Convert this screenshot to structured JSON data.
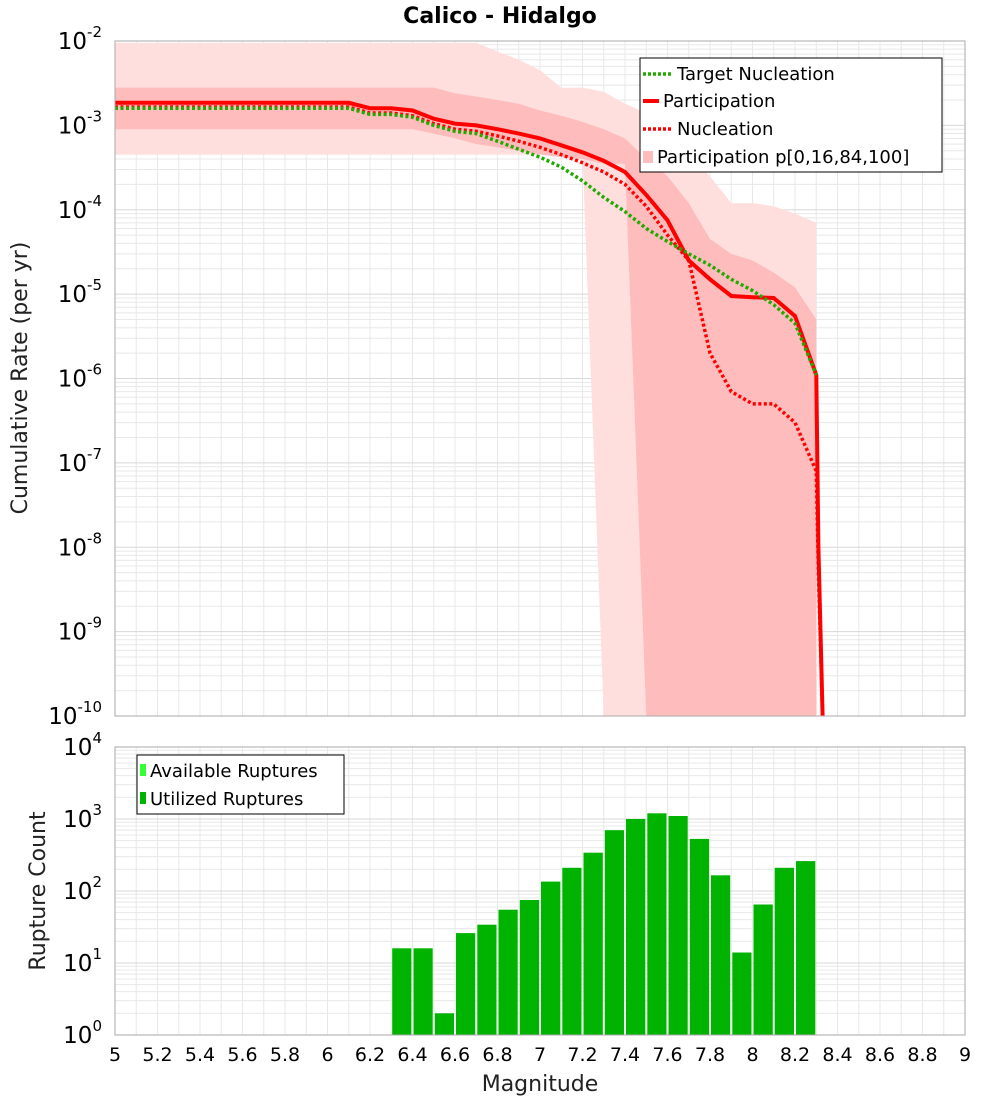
{
  "title": "Calico - Hidalgo",
  "colors": {
    "target": "#22aa00",
    "participation": "#ff0000",
    "nucleation": "#ff0000",
    "band_outer": "#ffdede",
    "band_inner": "#ffbcbc",
    "bars": "#00b300",
    "available": "#33ff33",
    "grid": "#e8e8e8"
  },
  "chart_data": [
    {
      "type": "line",
      "title": "Calico - Hidalgo",
      "xlabel": "",
      "ylabel": "Cumulative Rate (per yr)",
      "xlim": [
        5,
        9
      ],
      "ylim": [
        1e-10,
        0.01
      ],
      "yscale": "log",
      "grid": true,
      "legend": "top-right",
      "ytick_exponents": [
        "-10",
        "-9",
        "-8",
        "-7",
        "-6",
        "-5",
        "-4",
        "-3",
        "-2"
      ],
      "series": [
        {
          "name": "Target Nucleation",
          "style": "dotted",
          "x": [
            5.0,
            5.5,
            6.0,
            6.1,
            6.2,
            6.3,
            6.4,
            6.5,
            6.6,
            6.7,
            6.8,
            6.9,
            7.0,
            7.1,
            7.2,
            7.3,
            7.4,
            7.5,
            7.6,
            7.7,
            7.8,
            7.9,
            8.0,
            8.1,
            8.2,
            8.3
          ],
          "y": [
            0.0016,
            0.0016,
            0.0016,
            0.0016,
            0.00135,
            0.00135,
            0.00125,
            0.001,
            0.00085,
            0.0008,
            0.00065,
            0.00052,
            0.00042,
            0.00032,
            0.00022,
            0.00014,
            9.5e-05,
            6e-05,
            4.2e-05,
            3e-05,
            2.2e-05,
            1.5e-05,
            1.1e-05,
            7.5e-06,
            4.5e-06,
            1.1e-06
          ]
        },
        {
          "name": "Participation",
          "style": "solid",
          "x": [
            5.0,
            5.5,
            6.0,
            6.1,
            6.2,
            6.3,
            6.4,
            6.5,
            6.6,
            6.7,
            6.8,
            6.9,
            7.0,
            7.1,
            7.2,
            7.3,
            7.4,
            7.5,
            7.6,
            7.7,
            7.8,
            7.9,
            8.0,
            8.1,
            8.2,
            8.3,
            8.31,
            8.33
          ],
          "y": [
            0.00185,
            0.00185,
            0.00185,
            0.00185,
            0.0016,
            0.0016,
            0.0015,
            0.0012,
            0.00105,
            0.001,
            0.0009,
            0.0008,
            0.0007,
            0.00058,
            0.00048,
            0.00038,
            0.00028,
            0.00015,
            7.5e-05,
            2.5e-05,
            1.5e-05,
            9.5e-06,
            9.2e-06,
            9e-06,
            5.5e-06,
            1.1e-06,
            1e-08,
            1e-10
          ]
        },
        {
          "name": "Nucleation",
          "style": "dotted",
          "x": [
            5.0,
            5.5,
            6.0,
            6.1,
            6.2,
            6.3,
            6.4,
            6.5,
            6.6,
            6.7,
            6.8,
            6.9,
            7.0,
            7.1,
            7.2,
            7.3,
            7.4,
            7.5,
            7.6,
            7.7,
            7.8,
            7.9,
            8.0,
            8.1,
            8.2,
            8.3,
            8.31,
            8.33
          ],
          "y": [
            0.00165,
            0.00165,
            0.00165,
            0.00165,
            0.0014,
            0.0014,
            0.0013,
            0.00105,
            0.0009,
            0.00085,
            0.00075,
            0.00065,
            0.00055,
            0.00045,
            0.00036,
            0.00028,
            0.0002,
            0.00011,
            5e-05,
            2.5e-05,
            2e-06,
            7e-07,
            5e-07,
            5e-07,
            3e-07,
            8e-08,
            5e-09,
            1e-10
          ]
        }
      ],
      "bands": [
        {
          "name": "Participation p[0,16,84,100]",
          "level": "outer",
          "x": [
            5.0,
            6.0,
            6.4,
            6.5,
            6.6,
            6.7,
            6.8,
            6.9,
            7.0,
            7.1,
            7.2,
            7.3,
            7.4,
            7.5,
            7.6,
            7.7,
            7.8,
            7.9,
            8.0,
            8.1,
            8.2,
            8.3
          ],
          "upper": [
            0.0095,
            0.0095,
            0.0095,
            0.0095,
            0.0095,
            0.0095,
            0.0075,
            0.006,
            0.0045,
            0.0028,
            0.0028,
            0.0025,
            0.0018,
            0.0014,
            0.0009,
            0.0005,
            0.00025,
            0.00012,
            0.00012,
            0.00011,
            9e-05,
            7e-05
          ],
          "lower": [
            0.00045,
            0.00045,
            0.00045,
            0.00045,
            0.00045,
            0.00045,
            0.00045,
            0.00045,
            0.00045,
            0.00045,
            0.00045,
            1e-10,
            1e-10,
            1e-10,
            1e-10,
            1e-10,
            1e-10,
            1e-10,
            1e-10,
            1e-10,
            1e-10,
            1e-10
          ]
        },
        {
          "name": "Participation p[0,16,84,100]",
          "level": "inner",
          "x": [
            5.0,
            6.0,
            6.4,
            6.5,
            6.6,
            6.7,
            6.8,
            6.9,
            7.0,
            7.1,
            7.2,
            7.3,
            7.4,
            7.5,
            7.6,
            7.7,
            7.8,
            7.9,
            8.0,
            8.1,
            8.2,
            8.3
          ],
          "upper": [
            0.0028,
            0.0028,
            0.0028,
            0.0028,
            0.0024,
            0.0022,
            0.002,
            0.0018,
            0.0015,
            0.0013,
            0.0011,
            0.0009,
            0.0007,
            0.0004,
            0.00025,
            0.00012,
            4.5e-05,
            3e-05,
            2.5e-05,
            1.8e-05,
            1.2e-05,
            5e-06
          ],
          "lower": [
            0.0009,
            0.0009,
            0.0009,
            0.0008,
            0.0007,
            0.0006,
            0.00055,
            0.0005,
            0.00045,
            0.00042,
            0.0004,
            0.00035,
            0.00035,
            1e-10,
            1e-10,
            1e-10,
            1e-10,
            1e-10,
            1e-10,
            1e-10,
            1e-10,
            1e-10
          ]
        }
      ]
    },
    {
      "type": "bar",
      "xlabel": "Magnitude",
      "ylabel": "Rupture Count",
      "xlim": [
        5,
        9
      ],
      "ylim": [
        1,
        10000
      ],
      "yscale": "log",
      "grid": true,
      "legend": "top-left",
      "ytick_exponents": [
        "0",
        "1",
        "2",
        "3",
        "4"
      ],
      "xtick_labels": [
        "5",
        "5.2",
        "5.4",
        "5.6",
        "5.8",
        "6",
        "6.2",
        "6.4",
        "6.6",
        "6.8",
        "7",
        "7.2",
        "7.4",
        "7.6",
        "7.8",
        "8",
        "8.2",
        "8.4",
        "8.6",
        "8.8",
        "9"
      ],
      "bin_width": 0.1,
      "legend_entries": [
        "Available Ruptures",
        "Utilized Ruptures"
      ],
      "series": [
        {
          "name": "Utilized Ruptures",
          "x": [
            6.35,
            6.45,
            6.55,
            6.65,
            6.75,
            6.85,
            6.95,
            7.05,
            7.15,
            7.25,
            7.35,
            7.45,
            7.55,
            7.65,
            7.75,
            7.85,
            7.95,
            8.05,
            8.15,
            8.25
          ],
          "values": [
            16,
            16,
            2,
            26,
            34,
            55,
            75,
            135,
            210,
            340,
            700,
            1000,
            1200,
            1100,
            530,
            165,
            14,
            65,
            210,
            260
          ]
        }
      ]
    }
  ]
}
